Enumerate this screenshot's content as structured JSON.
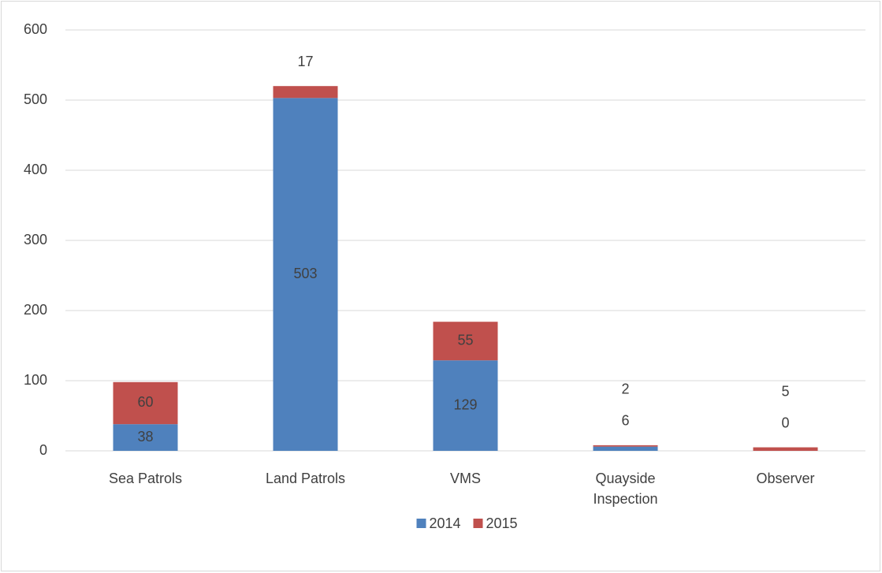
{
  "chart_data": {
    "type": "bar",
    "stacked": true,
    "categories": [
      "Sea Patrols",
      "Land Patrols",
      "VMS",
      "Quayside Inspection",
      "Observer"
    ],
    "series": [
      {
        "name": "2014",
        "color": "#4f81bd",
        "values": [
          38,
          503,
          129,
          6,
          0
        ]
      },
      {
        "name": "2015",
        "color": "#c0504d",
        "values": [
          60,
          17,
          55,
          2,
          5
        ]
      }
    ],
    "ylim": [
      0,
      600
    ],
    "yticks": [
      0,
      100,
      200,
      300,
      400,
      500,
      600
    ],
    "grid": true,
    "legend": "bottom"
  }
}
